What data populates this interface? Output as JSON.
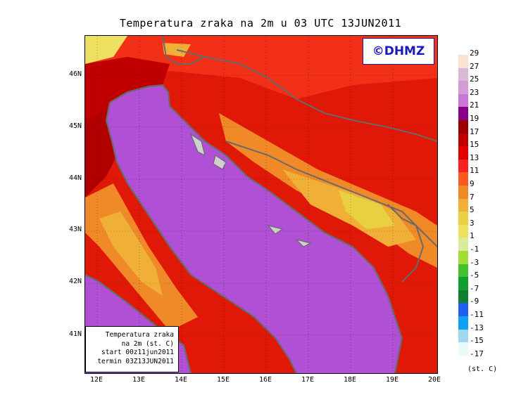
{
  "title": "Temperatura zraka na 2m u 03 UTC 13JUN2011",
  "logo_text": "©DHMZ",
  "infobox": {
    "line1": "Temperatura zraka",
    "line2": "na 2m (st. C)",
    "line3": "start 00z11jun2011",
    "line4": "termin 03Z13JUN2011"
  },
  "lat_labels": [
    "46N",
    "45N",
    "44N",
    "43N",
    "42N",
    "41N"
  ],
  "lon_labels": [
    "12E",
    "13E",
    "14E",
    "15E",
    "16E",
    "17E",
    "18E",
    "19E",
    "20E"
  ],
  "legend": {
    "unit": "(st. C)",
    "labels": [
      "29",
      "27",
      "25",
      "23",
      "21",
      "19",
      "17",
      "15",
      "13",
      "11",
      "9",
      "7",
      "5",
      "3",
      "1",
      "-1",
      "-3",
      "-5",
      "-7",
      "-9",
      "-11",
      "-13",
      "-15",
      "-17"
    ],
    "colors": [
      "#fbe3d2",
      "#d9b8d8",
      "#d79ad8",
      "#c877d9",
      "#8a008a",
      "#9a0000",
      "#c00000",
      "#e00000",
      "#f82020",
      "#f85a20",
      "#f08a28",
      "#f0b038",
      "#e8d040",
      "#eee060",
      "#d8ec9a",
      "#a4dc38",
      "#44c030",
      "#10a030",
      "#108030",
      "#2060f0",
      "#10a0f0",
      "#a0d8f0",
      "#e8fafa"
    ]
  },
  "colors": {
    "sea": "#b050d4",
    "logo_text": "#1a1ab8",
    "coastline": "#6a6a6a"
  }
}
